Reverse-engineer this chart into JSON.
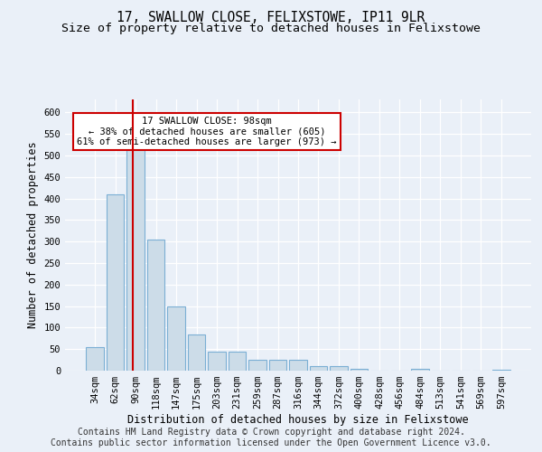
{
  "title": "17, SWALLOW CLOSE, FELIXSTOWE, IP11 9LR",
  "subtitle": "Size of property relative to detached houses in Felixstowe",
  "xlabel": "Distribution of detached houses by size in Felixstowe",
  "ylabel": "Number of detached properties",
  "categories": [
    "34sqm",
    "62sqm",
    "90sqm",
    "118sqm",
    "147sqm",
    "175sqm",
    "203sqm",
    "231sqm",
    "259sqm",
    "287sqm",
    "316sqm",
    "344sqm",
    "372sqm",
    "400sqm",
    "428sqm",
    "456sqm",
    "484sqm",
    "513sqm",
    "541sqm",
    "569sqm",
    "597sqm"
  ],
  "values": [
    55,
    410,
    530,
    305,
    150,
    85,
    45,
    45,
    25,
    25,
    25,
    10,
    10,
    5,
    0,
    0,
    5,
    0,
    0,
    0,
    3
  ],
  "bar_color": "#ccdce8",
  "bar_edge_color": "#7bafd4",
  "vline_x": 1.88,
  "vline_color": "#cc0000",
  "annotation_text": "17 SWALLOW CLOSE: 98sqm\n← 38% of detached houses are smaller (605)\n61% of semi-detached houses are larger (973) →",
  "annotation_box_color": "#ffffff",
  "annotation_box_edge": "#cc0000",
  "ylim": [
    0,
    630
  ],
  "yticks": [
    0,
    50,
    100,
    150,
    200,
    250,
    300,
    350,
    400,
    450,
    500,
    550,
    600
  ],
  "footer_line1": "Contains HM Land Registry data © Crown copyright and database right 2024.",
  "footer_line2": "Contains public sector information licensed under the Open Government Licence v3.0.",
  "bg_color": "#eaf0f8",
  "plot_bg_color": "#eaf0f8",
  "title_fontsize": 10.5,
  "subtitle_fontsize": 9.5,
  "axis_label_fontsize": 8.5,
  "tick_fontsize": 7.5,
  "footer_fontsize": 7,
  "annot_fontsize": 7.5
}
